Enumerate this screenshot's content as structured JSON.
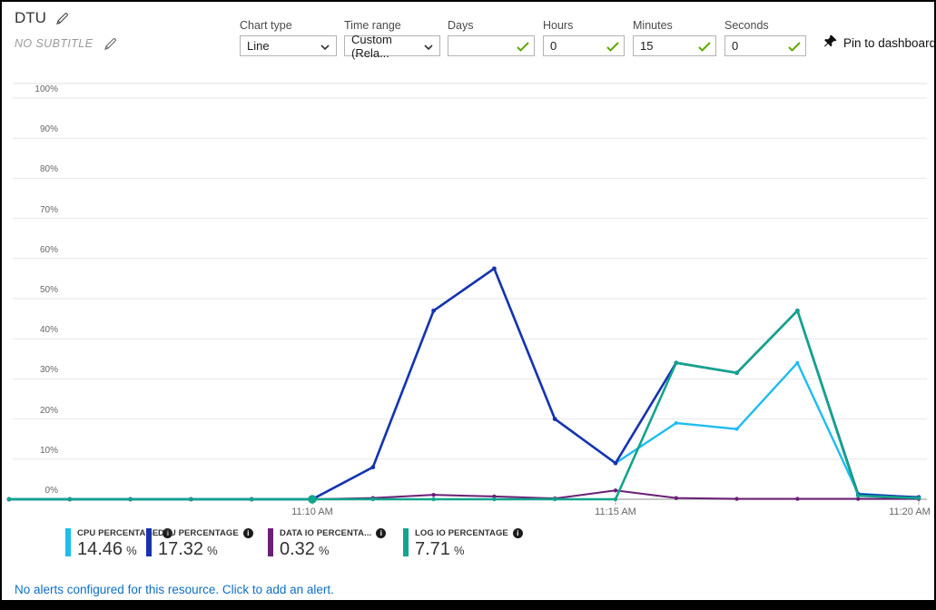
{
  "header": {
    "title": "DTU",
    "subtitle": "NO SUBTITLE",
    "controls": [
      {
        "label": "Chart type",
        "type": "select",
        "value": "Line"
      },
      {
        "label": "Time range",
        "type": "select",
        "value": "Custom (Rela..."
      },
      {
        "label": "Days",
        "type": "input",
        "value": "",
        "valid": true
      },
      {
        "label": "Hours",
        "type": "input",
        "value": "0",
        "valid": true
      },
      {
        "label": "Minutes",
        "type": "input",
        "value": "15",
        "valid": true
      },
      {
        "label": "Seconds",
        "type": "input",
        "value": "0",
        "valid": true
      }
    ],
    "pin_label": "Pin to dashboard"
  },
  "icons": {
    "edit": "pencil-icon",
    "dropdown": "chevron-down-icon",
    "valid": "green-checkmark-icon",
    "pin": "pushpin-icon",
    "info": "i"
  },
  "colors": {
    "cpu": "#1ebcf0",
    "dtu": "#1733b0",
    "data_io": "#6b2076",
    "log_io": "#12a48c",
    "valid_green": "#5fa800",
    "link_blue": "#0e6fc5",
    "gridline": "#e6e6e6",
    "axis_line": "#c8c8c8"
  },
  "chart_data": {
    "type": "line",
    "title": "DTU",
    "xlabel": "",
    "ylabel": "",
    "ylim": [
      0,
      100
    ],
    "grid": true,
    "legend_position": "bottom",
    "y_tick_labels": [
      "0%",
      "10%",
      "20%",
      "30%",
      "40%",
      "50%",
      "60%",
      "70%",
      "80%",
      "90%",
      "100%"
    ],
    "x_categories": [
      "11:05 AM",
      "11:06 AM",
      "11:07 AM",
      "11:08 AM",
      "11:09 AM",
      "11:10 AM",
      "11:11 AM",
      "11:12 AM",
      "11:13 AM",
      "11:14 AM",
      "11:15 AM",
      "11:16 AM",
      "11:17 AM",
      "11:18 AM",
      "11:19 AM",
      "11:20 AM"
    ],
    "x_tick_labels": [
      "11:10 AM",
      "11:15 AM",
      "11:20 AM"
    ],
    "x_tick_indices": [
      5,
      10,
      15
    ],
    "series": [
      {
        "name": "CPU PERCENTAGE",
        "color": "#1ebcf0",
        "values": [
          0,
          0,
          0,
          0,
          0,
          0,
          8,
          47,
          57.5,
          20,
          9,
          19,
          17.5,
          34,
          1.4,
          0.4
        ]
      },
      {
        "name": "DTU PERCENTAGE",
        "color": "#1733b0",
        "values": [
          0,
          0,
          0,
          0,
          0,
          0,
          8,
          47,
          57.5,
          20,
          9,
          34,
          31.5,
          47,
          1.2,
          0.5
        ]
      },
      {
        "name": "DATA IO PERCENTAGE",
        "color": "#6b2076",
        "values": [
          0,
          0,
          0,
          0,
          0,
          0,
          0.3,
          1.1,
          0.7,
          0.2,
          2.2,
          0.3,
          0.1,
          0.1,
          0.1,
          0.1
        ]
      },
      {
        "name": "LOG IO PERCENTAGE",
        "color": "#12a48c",
        "values": [
          0,
          0,
          0,
          0,
          0,
          0,
          0,
          0,
          0,
          0,
          0,
          34,
          31.5,
          47,
          0.9,
          0.3
        ]
      }
    ],
    "highlight_point": {
      "series": "LOG IO PERCENTAGE",
      "index": 5
    }
  },
  "legend": {
    "items": [
      {
        "label": "CPU PERCENTAGE",
        "value": "14.46",
        "unit": "%",
        "color": "#1ebcf0"
      },
      {
        "label": "DTU PERCENTAGE",
        "value": "17.32",
        "unit": "%",
        "color": "#1733b0"
      },
      {
        "label": "DATA IO PERCENTA...",
        "value": "0.32",
        "unit": "%",
        "color": "#6b2076"
      },
      {
        "label": "LOG IO PERCENTAGE",
        "value": "7.71",
        "unit": "%",
        "color": "#12a48c"
      }
    ]
  },
  "footer": {
    "alert_text": "No alerts configured for this resource. Click to add an alert."
  }
}
